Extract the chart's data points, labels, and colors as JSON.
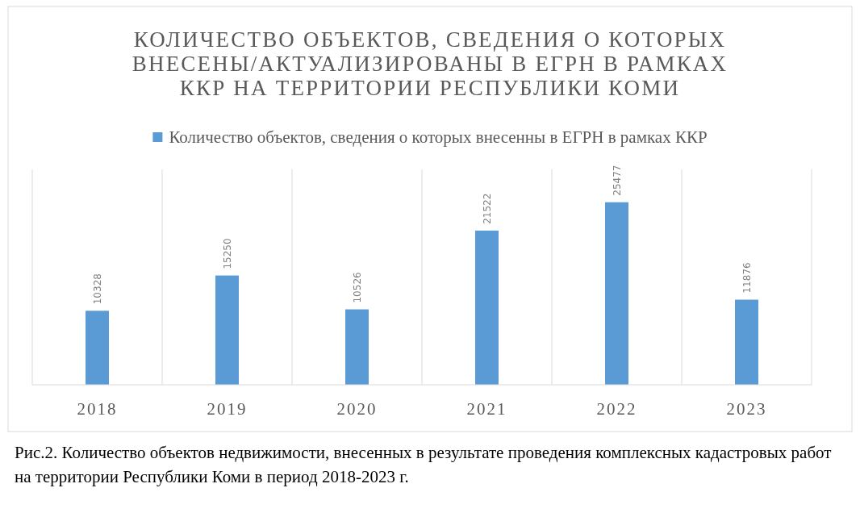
{
  "chart_data": {
    "type": "bar",
    "title": "КОЛИЧЕСТВО ОБЪЕКТОВ, СВЕДЕНИЯ О КОТОРЫХ ВНЕСЕНЫ/АКТУАЛИЗИРОВАНЫ В ЕГРН В РАМКАХ ККР НА ТЕРРИТОРИИ РЕСПУБЛИКИ КОМИ",
    "categories": [
      "2018",
      "2019",
      "2020",
      "2021",
      "2022",
      "2023"
    ],
    "series": [
      {
        "name": "Количество объектов, сведения о которых внесенны в ЕГРН в рамках ККР",
        "color": "#5b9bd5",
        "values": [
          10328,
          15250,
          10526,
          21522,
          25477,
          11876
        ]
      }
    ],
    "data_labels": true,
    "grid": "x",
    "legend": "top",
    "annotations": [
      "Рис.2. Количество объектов недвижимости, внесенных в результате проведения комплексных кадастровых работ на территории Республики Коми в период 2018-2023 г."
    ]
  }
}
